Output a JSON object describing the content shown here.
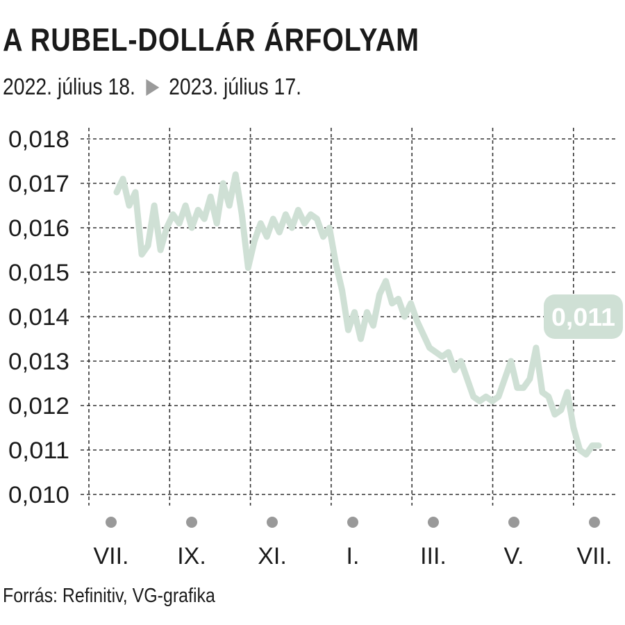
{
  "title": "A RUBEL-DOLLÁR ÁRFOLYAM",
  "subtitle": {
    "start": "2022. július 18.",
    "end": "2023. július 17."
  },
  "source": "Forrás: Refinitiv, VG-grafika",
  "colors": {
    "line": "#cfe0d5",
    "label_bg": "#cfe0d5",
    "label_text": "#ffffff",
    "dot": "#999999",
    "arrow": "#9a9a9a"
  },
  "chart_data": {
    "type": "line",
    "title": "A RUBEL-DOLLÁR ÁRFOLYAM",
    "ylim": [
      0.01,
      0.018
    ],
    "y_ticks": [
      "0,018",
      "0,017",
      "0,016",
      "0,015",
      "0,014",
      "0,013",
      "0,012",
      "0,011",
      "0,010"
    ],
    "x_ticks": [
      "VII.",
      "IX.",
      "XI.",
      "I.",
      "III.",
      "V.",
      "VII."
    ],
    "last_value_label": "0,011",
    "grid": true,
    "series": [
      {
        "values": [
          0.0168,
          0.0171,
          0.0165,
          0.0168,
          0.0154,
          0.0156,
          0.0165,
          0.0155,
          0.016,
          0.0163,
          0.0161,
          0.0165,
          0.016,
          0.0164,
          0.0162,
          0.0167,
          0.0161,
          0.017,
          0.0165,
          0.0172,
          0.0163,
          0.0151,
          0.0157,
          0.0161,
          0.0158,
          0.0162,
          0.0159,
          0.0163,
          0.016,
          0.0164,
          0.0161,
          0.0163,
          0.0162,
          0.0158,
          0.016,
          0.0152,
          0.0146,
          0.0137,
          0.0141,
          0.0135,
          0.0141,
          0.0138,
          0.0145,
          0.0148,
          0.0143,
          0.0144,
          0.014,
          0.0143,
          0.0139,
          0.0136,
          0.0133,
          0.0132,
          0.0131,
          0.0132,
          0.0128,
          0.013,
          0.0126,
          0.0122,
          0.0121,
          0.0122,
          0.0121,
          0.0122,
          0.0126,
          0.013,
          0.0124,
          0.0124,
          0.0126,
          0.0133,
          0.0123,
          0.0122,
          0.0118,
          0.0119,
          0.0123,
          0.0115,
          0.011,
          0.0109,
          0.0111,
          0.0111
        ]
      }
    ]
  }
}
